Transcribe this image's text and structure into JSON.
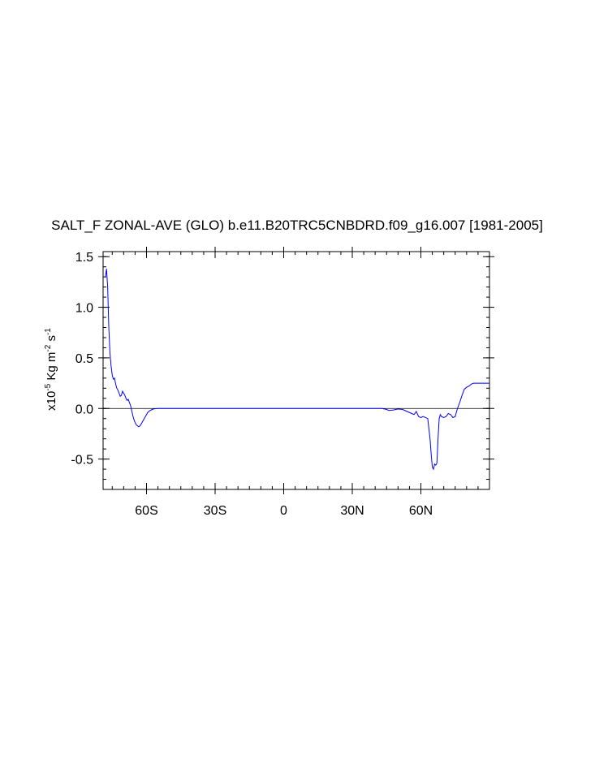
{
  "chart_data": {
    "type": "line",
    "title": "SALT_F ZONAL-AVE (GLO) b.e11.B20TRC5CNBDRD.f09_g16.007 [1981-2005]",
    "xlabel": "",
    "ylabel": {
      "prefix": "x10",
      "exp": "-5",
      "units": " Kg m",
      "m_exp": "-2",
      "s": " s",
      "s_exp": "-1"
    },
    "xlim": [
      -79,
      90
    ],
    "ylim": [
      -0.8,
      1.55
    ],
    "x_ticks": [
      {
        "value": -60,
        "label": "60S"
      },
      {
        "value": -30,
        "label": "30S"
      },
      {
        "value": 0,
        "label": "0"
      },
      {
        "value": 30,
        "label": "30N"
      },
      {
        "value": 60,
        "label": "60N"
      }
    ],
    "y_ticks": [
      {
        "value": 1.5,
        "label": "1.5"
      },
      {
        "value": 1.0,
        "label": "1.0"
      },
      {
        "value": 0.5,
        "label": "0.5"
      },
      {
        "value": 0.0,
        "label": "0.0"
      },
      {
        "value": -0.5,
        "label": "-0.5"
      }
    ],
    "y_minor_step": 0.1,
    "x_minor_step": 5,
    "reference_line": 0.0,
    "grid": false,
    "colors": {
      "series": "#0000ff",
      "axes": "#000000"
    },
    "series": [
      {
        "x": [
          -78.0,
          -77.5,
          -77.0,
          -76.5,
          -76.0,
          -75.5,
          -75.0,
          -74.5,
          -74.0,
          -73.5,
          -73.0,
          -72.5,
          -72.0,
          -71.5,
          -71.0,
          -70.5,
          -70.0,
          -69.5,
          -69.0,
          -68.5,
          -68.0,
          -67.5,
          -67.0,
          -66.5,
          -66.0,
          -65.5,
          -65.0,
          -64.5,
          -64.0,
          -63.5,
          -63.0,
          -62.5,
          -62.0,
          -61.5,
          -61.0,
          -60.5,
          -60.0,
          -59.5,
          -59.0,
          -58.5,
          -58.0,
          -57.5,
          -57.0,
          -56.0,
          -55.0,
          -54.0,
          -52.0,
          -50.0,
          -40.0,
          -30.0,
          -20.0,
          -10.0,
          0.0,
          10.0,
          20.0,
          30.0,
          40.0,
          43.0,
          45.0,
          46.0,
          48.0,
          50.0,
          52.0,
          53.0,
          54.0,
          55.0,
          56.0,
          57.0,
          58.0,
          59.0,
          60.0,
          61.0,
          62.0,
          63.0,
          64.0,
          64.5,
          65.0,
          65.5,
          66.0,
          66.5,
          67.0,
          67.5,
          68.0,
          68.5,
          69.0,
          70.0,
          71.0,
          72.0,
          73.0,
          74.0,
          75.0,
          76.0,
          77.0,
          78.0,
          79.0,
          80.0,
          81.0,
          82.0,
          83.0,
          84.0,
          85.0,
          86.0,
          87.0,
          88.0,
          89.0,
          90.0
        ],
        "y": [
          1.3,
          1.38,
          1.2,
          0.8,
          0.55,
          0.42,
          0.33,
          0.29,
          0.3,
          0.24,
          0.2,
          0.18,
          0.15,
          0.12,
          0.13,
          0.17,
          0.15,
          0.13,
          0.1,
          0.08,
          0.09,
          0.06,
          0.03,
          -0.02,
          -0.07,
          -0.11,
          -0.14,
          -0.16,
          -0.17,
          -0.18,
          -0.175,
          -0.16,
          -0.14,
          -0.12,
          -0.1,
          -0.08,
          -0.06,
          -0.04,
          -0.03,
          -0.02,
          -0.015,
          -0.01,
          -0.005,
          -0.002,
          0.0,
          0.0,
          0.0,
          0.0,
          0.0,
          0.0,
          0.0,
          0.0,
          0.0,
          0.0,
          0.0,
          0.0,
          0.0,
          0.0,
          -0.01,
          -0.02,
          -0.015,
          -0.005,
          -0.01,
          -0.02,
          -0.03,
          -0.04,
          -0.05,
          -0.06,
          -0.03,
          -0.08,
          -0.09,
          -0.08,
          -0.09,
          -0.1,
          -0.3,
          -0.45,
          -0.58,
          -0.6,
          -0.55,
          -0.56,
          -0.54,
          -0.3,
          -0.1,
          -0.06,
          -0.08,
          -0.09,
          -0.08,
          -0.05,
          -0.06,
          -0.09,
          -0.08,
          0.0,
          0.06,
          0.13,
          0.19,
          0.21,
          0.22,
          0.24,
          0.25,
          0.25,
          0.25,
          0.25,
          0.25,
          0.25,
          0.25,
          0.25
        ]
      }
    ]
  }
}
